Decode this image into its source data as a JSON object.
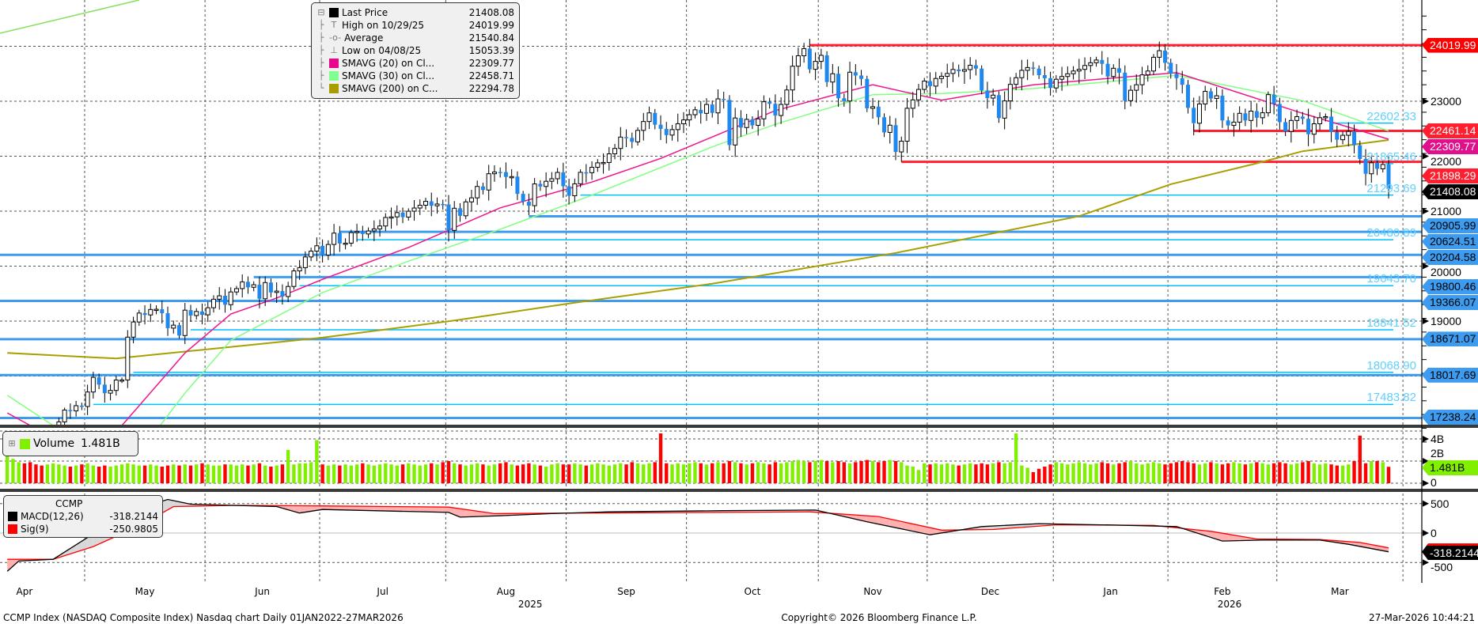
{
  "chart_data": {
    "type": "candlestick",
    "title": "CCMP Index (NASDAQ Composite Index) Nasdaq chart Daily 01JAN2022-27MAR2026",
    "copyright": "Copyright© 2026 Bloomberg Finance L.P.",
    "timestamp": "27-Mar-2026 10:44:21",
    "x_range": [
      "2025-04-10",
      "2026-03-27"
    ],
    "months": [
      {
        "label": "Apr",
        "start": -7
      },
      {
        "label": "May",
        "start": 14
      },
      {
        "label": "Jun",
        "start": 35
      },
      {
        "label": "Jul",
        "start": 55
      },
      {
        "label": "Aug",
        "start": 77
      },
      {
        "label": "Sep",
        "start": 98
      },
      {
        "label": "Oct",
        "start": 119
      },
      {
        "label": "Nov",
        "start": 142
      },
      {
        "label": "Dec",
        "start": 161
      },
      {
        "label": "Jan",
        "start": 183
      },
      {
        "label": "Feb",
        "start": 203
      },
      {
        "label": "Mar",
        "start": 222
      },
      {
        "label": "",
        "start": 244
      }
    ],
    "years": [
      {
        "label": "2025",
        "from": 0,
        "to": 183
      },
      {
        "label": "2026",
        "from": 183,
        "to": 244
      }
    ],
    "price_axis": {
      "ticks": [
        24000,
        23000,
        22000,
        21000,
        20000,
        19000,
        18000,
        17000
      ],
      "labeled": [
        "23000",
        "22000",
        "21000",
        "20000",
        "19000"
      ]
    },
    "closes": [
      16387,
      16724,
      16831,
      16823,
      16307,
      16286,
      15870,
      16300,
      16708,
      17166,
      17382,
      17366,
      17461,
      17446,
      17710,
      17977,
      17844,
      17689,
      17738,
      17928,
      17929,
      18708,
      18984,
      19146,
      19112,
      19211,
      19215,
      19143,
      18872,
      18926,
      18737,
      19199,
      19101,
      19175,
      19114,
      19243,
      19398,
      19460,
      19298,
      19530,
      19591,
      19714,
      19615,
      19662,
      19406,
      19701,
      19521,
      19546,
      19447,
      19630,
      19913,
      19973,
      20167,
      20273,
      20370,
      20202,
      20394,
      20601,
      20412,
      20418,
      20611,
      20630,
      20585,
      20640,
      20677,
      20730,
      20885,
      20896,
      20974,
      20892,
      20999,
      21057,
      21108,
      21179,
      21098,
      21130,
      21122,
      20650,
      21053,
      20916,
      21169,
      21242,
      21450,
      21385,
      21681,
      21713,
      21710,
      21623,
      21629,
      21315,
      21172,
      21100,
      21496,
      21449,
      21544,
      21590,
      21705,
      21455,
      21280,
      21498,
      21707,
      21700,
      21798,
      21879,
      21886,
      22043,
      22141,
      22348,
      22333,
      22261,
      22470,
      22631,
      22788,
      22573,
      22497,
      22384,
      22484,
      22591,
      22660,
      22755,
      22844,
      22780,
      22941,
      22788,
      23043,
      23024,
      22204,
      22695,
      22521,
      22670,
      22562,
      22680,
      22991,
      22953,
      22740,
      22942,
      23205,
      23637,
      23827,
      23958,
      23581,
      23725,
      23835,
      23349,
      23500,
      23054,
      23004,
      23528,
      23468,
      23406,
      22871,
      22901,
      22709,
      22433,
      22564,
      22078,
      22273,
      22872,
      23025,
      23215,
      23366,
      23275,
      23414,
      23454,
      23506,
      23578,
      23546,
      23576,
      23654,
      23593,
      23195,
      23057,
      23111,
      22693,
      23006,
      23307,
      23428,
      23562,
      23613,
      23593,
      23475,
      23419,
      23242,
      23400,
      23450,
      23500,
      23550,
      23580,
      23650,
      23700,
      23750,
      23680,
      23450,
      23600,
      23520,
      23010,
      23200,
      23300,
      23480,
      23550,
      23800,
      23920,
      23700,
      23500,
      23420,
      23300,
      22880,
      22600,
      22950,
      23180,
      23050,
      23100,
      22650,
      22560,
      22620,
      22780,
      22650,
      22820,
      22700,
      22790,
      23120,
      22950,
      22620,
      22450,
      22650,
      22720,
      22680,
      22400,
      22590,
      22700,
      22720,
      22440,
      22300,
      22380,
      22450,
      22200,
      21950,
      21680,
      21880,
      21770,
      21850,
      21408.08
    ],
    "sma20": [
      [
        0,
        17330
      ],
      [
        4,
        17100
      ],
      [
        8,
        16400
      ],
      [
        16,
        16400
      ],
      [
        20,
        17100
      ],
      [
        31,
        18420
      ],
      [
        39,
        19130
      ],
      [
        47,
        19420
      ],
      [
        55,
        19760
      ],
      [
        70,
        20340
      ],
      [
        86,
        21060
      ],
      [
        102,
        21530
      ],
      [
        114,
        21960
      ],
      [
        123,
        22350
      ],
      [
        134,
        22830
      ],
      [
        151,
        23300
      ],
      [
        163,
        23020
      ],
      [
        179,
        23300
      ],
      [
        204,
        23520
      ],
      [
        226,
        22780
      ],
      [
        241,
        22309.77
      ]
    ],
    "sma30": [
      [
        0,
        17650
      ],
      [
        8,
        17100
      ],
      [
        12,
        16400
      ],
      [
        21,
        16400
      ],
      [
        23,
        16600
      ],
      [
        31,
        17690
      ],
      [
        39,
        18650
      ],
      [
        55,
        19520
      ],
      [
        70,
        20090
      ],
      [
        86,
        20670
      ],
      [
        102,
        21290
      ],
      [
        123,
        22170
      ],
      [
        134,
        22580
      ],
      [
        151,
        23120
      ],
      [
        163,
        23140
      ],
      [
        179,
        23230
      ],
      [
        204,
        23470
      ],
      [
        226,
        23010
      ],
      [
        241,
        22458.71
      ]
    ],
    "sma200": [
      [
        0,
        18420
      ],
      [
        19,
        18320
      ],
      [
        55,
        18700
      ],
      [
        78,
        19010
      ],
      [
        98,
        19320
      ],
      [
        123,
        19680
      ],
      [
        155,
        20240
      ],
      [
        187,
        20910
      ],
      [
        203,
        21490
      ],
      [
        218,
        21870
      ],
      [
        226,
        22090
      ],
      [
        241,
        22294.78
      ]
    ],
    "levels": [
      {
        "value": 24019.99,
        "kind": "red",
        "from": 140
      },
      {
        "value": 22461.14,
        "kind": "red",
        "from": 207
      },
      {
        "value": 21898.29,
        "kind": "red",
        "from": 156
      },
      {
        "value": 20905.99,
        "kind": "blue",
        "from": 91
      },
      {
        "value": 20624.51,
        "kind": "blue",
        "from": 58
      },
      {
        "value": 20204.58,
        "kind": "blue",
        "from": -2
      },
      {
        "value": 19800.46,
        "kind": "blue",
        "from": 43
      },
      {
        "value": 19366.07,
        "kind": "blue",
        "from": -2
      },
      {
        "value": 18671.07,
        "kind": "blue",
        "from": -2
      },
      {
        "value": 18017.69,
        "kind": "blue",
        "from": -2
      },
      {
        "value": 17238.24,
        "kind": "blue",
        "from": -2
      }
    ],
    "labeled_levels": [
      {
        "text": "22602.33",
        "value": 22602.33,
        "from": 231
      },
      {
        "text": "21865.46",
        "value": 21865.46,
        "from": 240.5
      },
      {
        "text": "21293.69",
        "value": 21293.69,
        "from": 100
      },
      {
        "text": "20480.89",
        "value": 20480.89,
        "from": 61
      },
      {
        "text": "19643.70",
        "value": 19643.7,
        "from": 51
      },
      {
        "text": "18841.52",
        "value": 18841.52,
        "from": 32
      },
      {
        "text": "18068.90",
        "value": 18068.9,
        "from": 22
      },
      {
        "text": "17483.82",
        "value": 17483.82,
        "from": 15
      }
    ],
    "axis_labels": [
      {
        "text": "24019.99",
        "value": 24019.99,
        "style": "top"
      },
      {
        "text": "22309.77",
        "value": 22309.77,
        "style": "mag"
      },
      {
        "text": "22461.14",
        "value": 22461.14,
        "style": "red"
      },
      {
        "text": "21898.29",
        "value": 21898.29,
        "style": "red"
      },
      {
        "text": "21408.08",
        "value": 21408.08,
        "style": "blk"
      },
      {
        "text": "20905.99",
        "value": 20905.99,
        "style": "blue"
      },
      {
        "text": "20624.51",
        "value": 20624.51,
        "style": "blue"
      },
      {
        "text": "20204.58",
        "value": 20204.58,
        "style": "blue"
      },
      {
        "text": "19800.46",
        "value": 19800.46,
        "style": "blue"
      },
      {
        "text": "19366.07",
        "value": 19366.07,
        "style": "blue"
      },
      {
        "text": "18671.07",
        "value": 18671.07,
        "style": "blue"
      },
      {
        "text": "18017.69",
        "value": 18017.69,
        "style": "blue"
      },
      {
        "text": "17238.24",
        "value": 17238.24,
        "style": "blue"
      }
    ],
    "volume": {
      "unit": "B",
      "ticks": [
        "4B",
        "2B",
        "0"
      ],
      "tick_values": [
        4,
        2,
        0
      ],
      "values": [
        3.6,
        2.2,
        1.9,
        1.8,
        1.9,
        1.7,
        1.6,
        1.7,
        1.8,
        1.7,
        1.6,
        1.5,
        1.6,
        1.7,
        1.8,
        1.6,
        1.5,
        1.6,
        1.5,
        1.6,
        1.7,
        1.8,
        1.7,
        1.6,
        1.6,
        1.7,
        1.6,
        1.5,
        1.6,
        1.7,
        1.6,
        1.7,
        1.6,
        1.7,
        1.8,
        1.7,
        1.6,
        1.6,
        1.7,
        1.7,
        1.6,
        1.7,
        1.6,
        1.7,
        1.8,
        1.6,
        1.5,
        1.6,
        1.7,
        3.0,
        1.7,
        1.8,
        1.8,
        1.9,
        3.9,
        1.7,
        1.6,
        1.7,
        1.6,
        1.7,
        1.6,
        1.7,
        1.8,
        1.7,
        1.6,
        1.7,
        1.8,
        1.7,
        1.6,
        1.7,
        1.8,
        1.7,
        1.6,
        1.7,
        1.8,
        1.7,
        1.9,
        2.0,
        1.8,
        1.7,
        1.6,
        1.7,
        1.8,
        1.7,
        1.6,
        1.7,
        1.8,
        1.9,
        1.7,
        1.6,
        1.7,
        1.8,
        1.7,
        1.6,
        1.5,
        1.7,
        1.8,
        1.7,
        1.7,
        1.8,
        1.7,
        1.6,
        1.7,
        1.8,
        1.7,
        1.6,
        1.7,
        1.8,
        1.7,
        1.9,
        1.8,
        1.7,
        1.8,
        1.9,
        4.5,
        1.8,
        1.7,
        1.8,
        1.7,
        1.8,
        1.9,
        1.8,
        1.7,
        1.8,
        1.9,
        1.8,
        2.0,
        1.9,
        1.8,
        1.7,
        1.8,
        1.9,
        1.8,
        1.7,
        1.9,
        1.8,
        1.9,
        2.0,
        2.1,
        2.0,
        1.9,
        2.0,
        2.1,
        2.0,
        1.9,
        2.0,
        1.9,
        1.8,
        1.9,
        2.0,
        2.1,
        2.0,
        1.9,
        2.0,
        2.1,
        2.0,
        1.9,
        1.6,
        1.5,
        1.2,
        1.8,
        1.7,
        1.8,
        1.7,
        1.8,
        1.7,
        1.6,
        1.7,
        1.8,
        1.7,
        1.8,
        1.7,
        1.8,
        1.9,
        1.8,
        1.9,
        4.5,
        1.6,
        1.4,
        1.0,
        1.3,
        1.5,
        1.7,
        1.9,
        1.8,
        1.7,
        1.8,
        1.9,
        1.8,
        1.7,
        1.8,
        1.9,
        1.8,
        1.7,
        1.8,
        1.9,
        2.0,
        1.8,
        1.7,
        1.8,
        1.9,
        1.8,
        1.7,
        1.8,
        1.9,
        2.0,
        1.9,
        1.8,
        1.7,
        1.8,
        1.9,
        1.8,
        1.7,
        1.8,
        1.9,
        1.8,
        1.7,
        1.8,
        1.9,
        1.8,
        1.7,
        1.8,
        1.9,
        1.8,
        1.7,
        1.8,
        1.9,
        2.0,
        1.8,
        1.7,
        1.8,
        1.7,
        1.6,
        1.6,
        1.7,
        2.0,
        4.3,
        1.8,
        2.0,
        2.0,
        1.9,
        1.481
      ],
      "last_label": "1.481B"
    },
    "macd": {
      "ticks": [
        "500",
        "0",
        "-500"
      ],
      "tick_values": [
        500,
        0,
        -500
      ],
      "macd_line": [
        [
          0,
          -650
        ],
        [
          2,
          -475
        ],
        [
          8,
          -445
        ],
        [
          15,
          -15
        ],
        [
          23,
          420
        ],
        [
          28,
          570
        ],
        [
          32,
          490
        ],
        [
          47,
          450
        ],
        [
          51,
          340
        ],
        [
          55,
          400
        ],
        [
          77,
          350
        ],
        [
          79,
          270
        ],
        [
          85,
          290
        ],
        [
          95,
          330
        ],
        [
          105,
          360
        ],
        [
          125,
          380
        ],
        [
          141,
          390
        ],
        [
          150,
          190
        ],
        [
          161,
          -30
        ],
        [
          170,
          110
        ],
        [
          180,
          160
        ],
        [
          193,
          135
        ],
        [
          204,
          110
        ],
        [
          212,
          -135
        ],
        [
          219,
          -120
        ],
        [
          229,
          -120
        ],
        [
          234,
          -190
        ],
        [
          241,
          -318.2144
        ]
      ],
      "signal_line": [
        [
          0,
          -445
        ],
        [
          8,
          -445
        ],
        [
          15,
          -230
        ],
        [
          23,
          120
        ],
        [
          29,
          450
        ],
        [
          40,
          470
        ],
        [
          55,
          460
        ],
        [
          77,
          440
        ],
        [
          85,
          330
        ],
        [
          100,
          340
        ],
        [
          125,
          350
        ],
        [
          140,
          360
        ],
        [
          152,
          280
        ],
        [
          163,
          50
        ],
        [
          172,
          60
        ],
        [
          183,
          140
        ],
        [
          200,
          130
        ],
        [
          210,
          30
        ],
        [
          218,
          -100
        ],
        [
          229,
          -110
        ],
        [
          236,
          -160
        ],
        [
          241,
          -250.9805
        ]
      ],
      "last_label": "-318.2144"
    }
  },
  "legend": {
    "items": [
      {
        "name": "Last Price",
        "value": "21408.08"
      },
      {
        "name": "High on 10/29/25",
        "value": "24019.99"
      },
      {
        "name": "Average",
        "value": "21540.84"
      },
      {
        "name": "Low on 04/08/25",
        "value": "15053.39"
      },
      {
        "name": "SMAVG (20)  on Cl...",
        "value": "22309.77"
      },
      {
        "name": "SMAVG (30)  on Cl...",
        "value": "22458.71"
      },
      {
        "name": "SMAVG (200)  on C...",
        "value": "22294.78"
      }
    ]
  },
  "volume_legend": {
    "name": "Volume",
    "value": "1.481B"
  },
  "macd_legend": {
    "header": "CCMP",
    "items": [
      {
        "name": "MACD(12,26)",
        "value": "-318.2144"
      },
      {
        "name": "Sig(9)",
        "value": "-250.9805"
      }
    ]
  },
  "colors": {
    "up_fill": "#ffffff",
    "down_fill": "#1e88f0",
    "sma20": "#f0148c",
    "sma30": "#80ff80",
    "sma200": "#a8a000",
    "red_level": "#ff1f2f",
    "blue_level": "#3d9cf0",
    "cyan_level": "#00c0ff",
    "vol_up": "#80f000",
    "vol_down": "#ff0000",
    "macd": "#000000",
    "signal": "#ff0000"
  }
}
